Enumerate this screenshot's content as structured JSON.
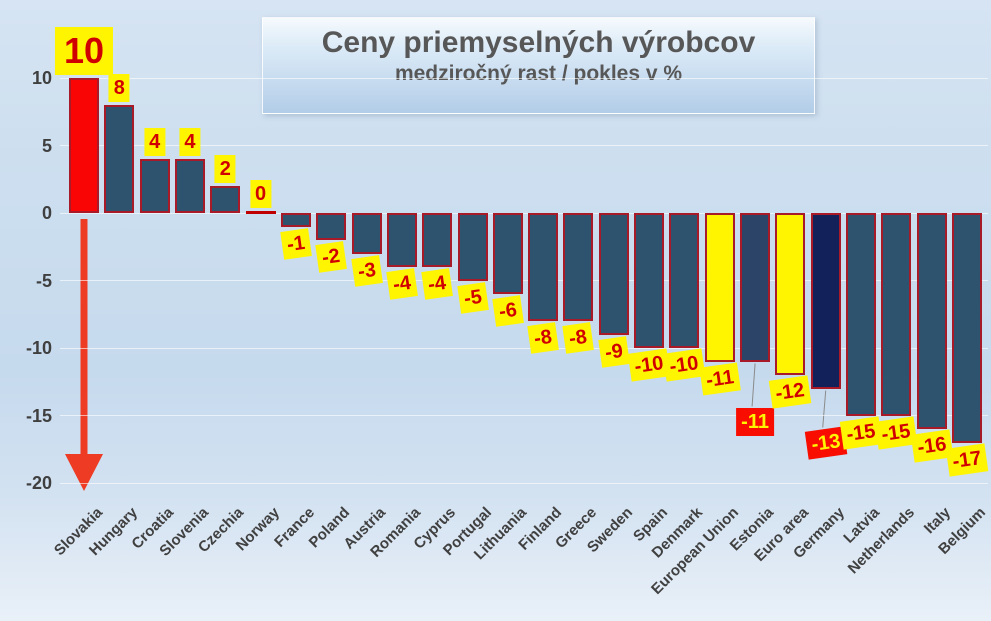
{
  "chart_data": {
    "type": "bar",
    "title": "Ceny priemyselných výrobcov",
    "subtitle": "medziročný rast / pokles v %",
    "ylabel": "",
    "xlabel": "",
    "ylim": [
      -20,
      10
    ],
    "yticks": [
      10,
      5,
      0,
      -5,
      -10,
      -15,
      -20
    ],
    "grid": "faint horizontal lines every 5 units",
    "legend": "none",
    "categories": [
      "Slovakia",
      "Hungary",
      "Croatia",
      "Slovenia",
      "Czechia",
      "Norway",
      "France",
      "Poland",
      "Austria",
      "Romania",
      "Cyprus",
      "Portugal",
      "Lithuania",
      "Finland",
      "Greece",
      "Sweden",
      "Spain",
      "Denmark",
      "European Union",
      "Estonia",
      "Euro area",
      "Germany",
      "Latvia",
      "Netherlands",
      "Italy",
      "Belgium"
    ],
    "values": [
      10,
      8,
      4,
      4,
      2,
      0,
      -1,
      -2,
      -3,
      -4,
      -4,
      -5,
      -6,
      -8,
      -8,
      -9,
      -10,
      -10,
      -11,
      -11,
      -12,
      -13,
      -15,
      -15,
      -16,
      -17
    ],
    "bars": [
      {
        "name": "Slovakia",
        "value": 10,
        "style": "red",
        "big_label": true
      },
      {
        "name": "Hungary",
        "value": 8,
        "style": "blue"
      },
      {
        "name": "Croatia",
        "value": 4,
        "style": "blue"
      },
      {
        "name": "Slovenia",
        "value": 4,
        "style": "blue"
      },
      {
        "name": "Czechia",
        "value": 2,
        "style": "blue"
      },
      {
        "name": "Norway",
        "value": 0,
        "style": "blue"
      },
      {
        "name": "France",
        "value": -1,
        "style": "blue"
      },
      {
        "name": "Poland",
        "value": -2,
        "style": "blue"
      },
      {
        "name": "Austria",
        "value": -3,
        "style": "blue"
      },
      {
        "name": "Romania",
        "value": -4,
        "style": "blue"
      },
      {
        "name": "Cyprus",
        "value": -4,
        "style": "blue"
      },
      {
        "name": "Portugal",
        "value": -5,
        "style": "blue"
      },
      {
        "name": "Lithuania",
        "value": -6,
        "style": "blue"
      },
      {
        "name": "Finland",
        "value": -8,
        "style": "blue"
      },
      {
        "name": "Greece",
        "value": -8,
        "style": "blue"
      },
      {
        "name": "Sweden",
        "value": -9,
        "style": "blue"
      },
      {
        "name": "Spain",
        "value": -10,
        "style": "blue"
      },
      {
        "name": "Denmark",
        "value": -10,
        "style": "blue"
      },
      {
        "name": "European Union",
        "value": -11,
        "style": "yellow"
      },
      {
        "name": "Estonia",
        "value": -11,
        "style": "darkblue",
        "label_style": "callout",
        "label_dy": 46
      },
      {
        "name": "Euro area",
        "value": -12,
        "style": "yellow"
      },
      {
        "name": "Germany",
        "value": -13,
        "style": "navy",
        "label_style": "callout",
        "label_dy": 40
      },
      {
        "name": "Latvia",
        "value": -15,
        "style": "blue"
      },
      {
        "name": "Netherlands",
        "value": -15,
        "style": "blue"
      },
      {
        "name": "Italy",
        "value": -16,
        "style": "blue"
      },
      {
        "name": "Belgium",
        "value": -17,
        "style": "blue"
      }
    ],
    "annotations": {
      "down_arrow": {
        "under": "Slovakia",
        "from_value": 0,
        "to_value": -20
      }
    }
  },
  "colors": {
    "bar_blue": "#2e536f",
    "bar_darkblue": "#2b4468",
    "bar_navy": "#13215a",
    "bar_red": "#f90505",
    "bar_yellow": "#fff500",
    "bar_border": "#a81a28",
    "zero_bar": "#c00000",
    "label_bg_yellow": "#fff500",
    "label_fg_red": "#d10000",
    "label_bg_red": "#f90d00",
    "label_fg_yellow": "#fff500",
    "axis_text": "#3f3f3f",
    "title_text": "#575757",
    "arrow_red": "#ed3b24",
    "leader_line": "#8a8a8a"
  }
}
